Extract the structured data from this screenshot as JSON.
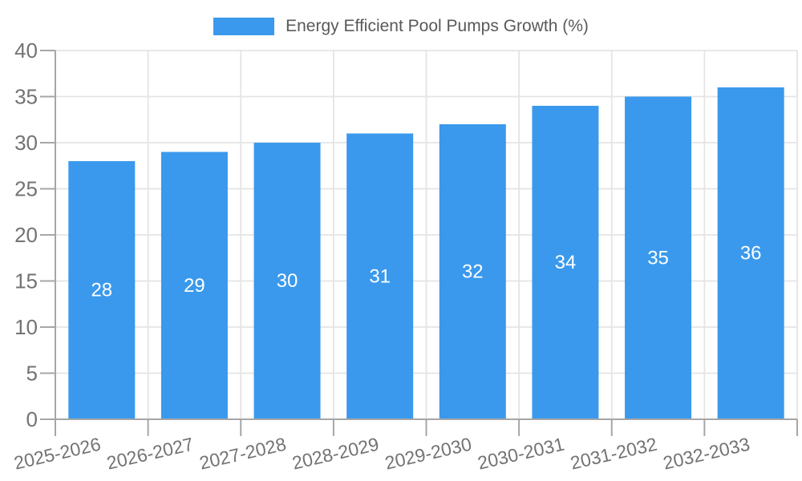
{
  "legend": {
    "label": "Energy Efficient Pool Pumps Growth (%)"
  },
  "chart_data": {
    "type": "bar",
    "title": "Energy Efficient Pool Pumps Growth (%)",
    "series_name": "Energy Efficient Pool Pumps Growth (%)",
    "categories": [
      "2025-2026",
      "2026-2027",
      "2027-2028",
      "2028-2029",
      "2029-2030",
      "2030-2031",
      "2031-2032",
      "2032-2033"
    ],
    "values": [
      28,
      29,
      30,
      31,
      32,
      34,
      35,
      36
    ],
    "xlabel": "",
    "ylabel": "",
    "ylim": [
      0,
      40
    ],
    "yticks": [
      0,
      5,
      10,
      15,
      20,
      25,
      30,
      35,
      40
    ],
    "grid": true,
    "legend_position": "top",
    "bar_label_position": "inside-center"
  },
  "colors": {
    "bar": "#3A99EC",
    "grid": "#E4E4E4",
    "axis": "#A6A6A6",
    "tick": "#A6A6A6",
    "tick_label": "#737373",
    "bar_label": "#FFFFFF",
    "legend_text": "#58595B",
    "background": "#FFFFFF"
  }
}
